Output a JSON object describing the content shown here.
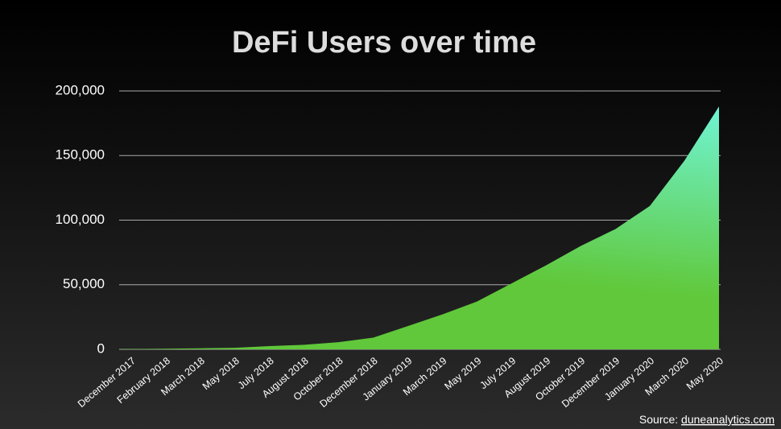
{
  "chart_data": {
    "type": "area",
    "title": "DeFi Users over time",
    "categories": [
      "December 2017",
      "February 2018",
      "March 2018",
      "May 2018",
      "July 2018",
      "August 2018",
      "October 2018",
      "December 2018",
      "January 2019",
      "March 2019",
      "May 2019",
      "July 2019",
      "August 2019",
      "October 2019",
      "December 2019",
      "January 2020",
      "March 2020",
      "May 2020"
    ],
    "values": [
      200,
      500,
      800,
      1200,
      2500,
      3500,
      5500,
      9000,
      18000,
      27000,
      37000,
      51000,
      65000,
      80000,
      93000,
      111000,
      146000,
      188000
    ],
    "colors": [
      "#70f4d4",
      "#60c83a"
    ],
    "ylim": [
      0,
      200000
    ],
    "yticks": [
      0,
      {
        "value": 50000,
        "label": "50,000"
      },
      {
        "value": 100000,
        "label": "100,000"
      },
      {
        "value": 150000,
        "label": "150,000"
      },
      {
        "value": 200000,
        "label": "200,000"
      }
    ],
    "grid": true,
    "source": "Source:",
    "source_link": "duneanalytics.com"
  }
}
